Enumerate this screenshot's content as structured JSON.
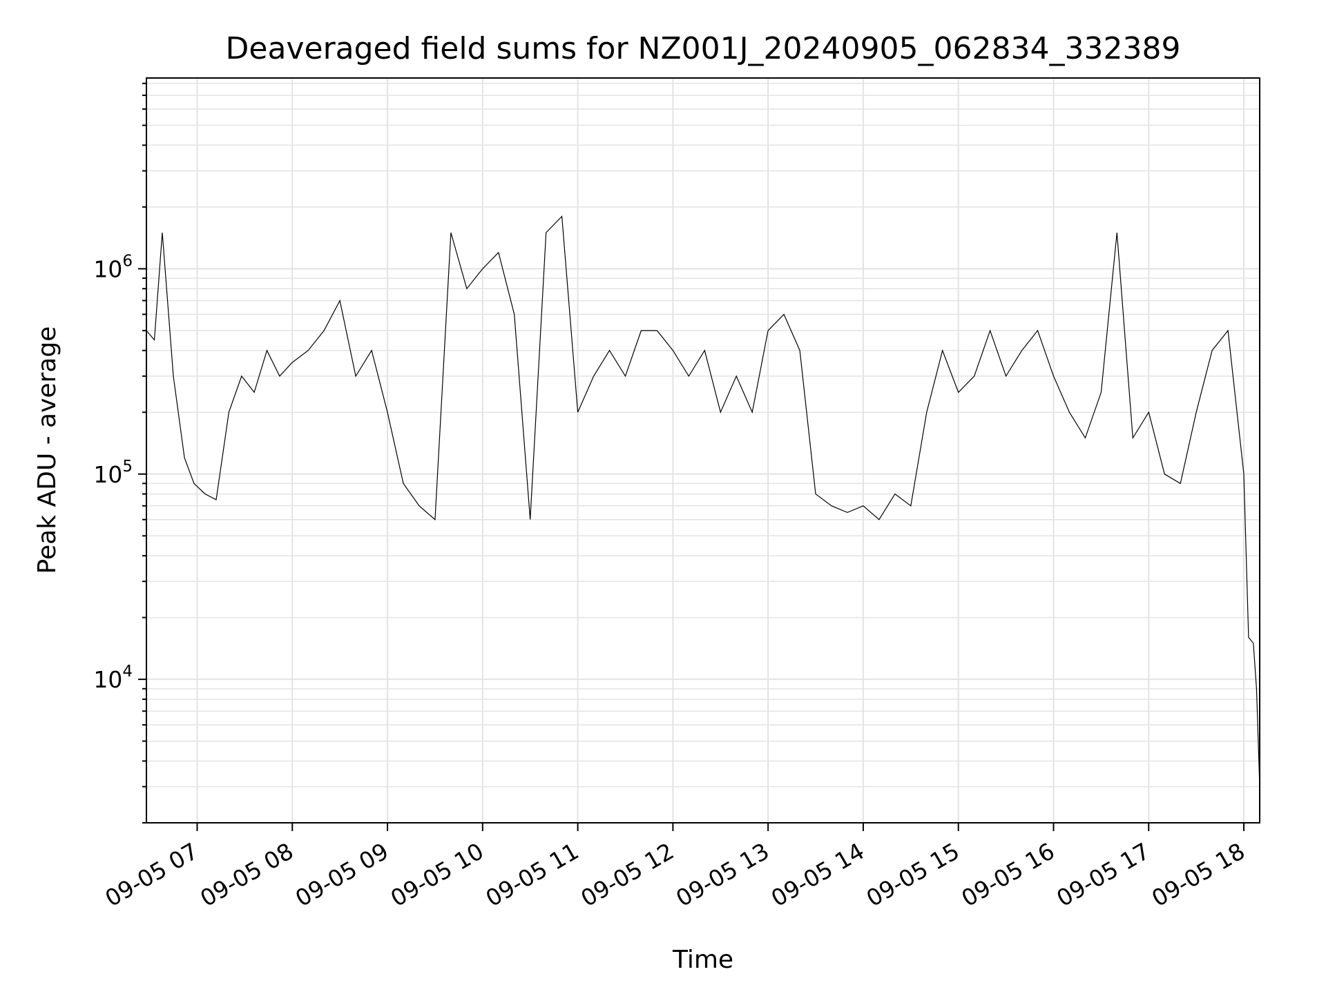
{
  "chart_data": {
    "type": "line",
    "title": "Deaveraged field sums for NZ001J_20240905_062834_332389",
    "xlabel": "Time",
    "ylabel": "Peak ADU - average",
    "yscale": "log",
    "ylim": [
      2000,
      8500000
    ],
    "xlim": [
      "2024-09-05 06:28",
      "2024-09-05 18:10"
    ],
    "grid": "both",
    "xticks": [
      "09-05 07",
      "09-05 08",
      "09-05 09",
      "09-05 10",
      "09-05 11",
      "09-05 12",
      "09-05 13",
      "09-05 14",
      "09-05 15",
      "09-05 16",
      "09-05 17",
      "09-05 18"
    ],
    "xtick_times": [
      "07:00",
      "08:00",
      "09:00",
      "10:00",
      "11:00",
      "12:00",
      "13:00",
      "14:00",
      "15:00",
      "16:00",
      "17:00",
      "18:00"
    ],
    "yticks": [
      {
        "value": 10000,
        "base": "10",
        "exp": "4"
      },
      {
        "value": 100000,
        "base": "10",
        "exp": "5"
      },
      {
        "value": 1000000,
        "base": "10",
        "exp": "6"
      }
    ],
    "series": [
      {
        "color": "#000000",
        "x": [
          "06:28",
          "06:33",
          "06:38",
          "06:45",
          "06:52",
          "06:58",
          "07:05",
          "07:12",
          "07:20",
          "07:28",
          "07:36",
          "07:44",
          "07:52",
          "08:00",
          "08:10",
          "08:20",
          "08:30",
          "08:40",
          "08:50",
          "09:00",
          "09:10",
          "09:20",
          "09:30",
          "09:40",
          "09:50",
          "10:00",
          "10:10",
          "10:20",
          "10:30",
          "10:40",
          "10:50",
          "11:00",
          "11:10",
          "11:20",
          "11:30",
          "11:40",
          "11:50",
          "12:00",
          "12:10",
          "12:20",
          "12:30",
          "12:40",
          "12:50",
          "13:00",
          "13:10",
          "13:20",
          "13:30",
          "13:40",
          "13:50",
          "14:00",
          "14:10",
          "14:20",
          "14:30",
          "14:40",
          "14:50",
          "15:00",
          "15:10",
          "15:20",
          "15:30",
          "15:40",
          "15:50",
          "16:00",
          "16:10",
          "16:20",
          "16:30",
          "16:40",
          "16:50",
          "17:00",
          "17:10",
          "17:20",
          "17:30",
          "17:40",
          "17:50",
          "18:00",
          "18:03",
          "18:06",
          "18:08",
          "18:10"
        ],
        "y": [
          500000,
          450000,
          1500000,
          300000,
          120000,
          90000,
          80000,
          75000,
          200000,
          300000,
          250000,
          400000,
          300000,
          350000,
          400000,
          500000,
          700000,
          300000,
          400000,
          200000,
          90000,
          70000,
          60000,
          1500000,
          800000,
          1000000,
          1200000,
          600000,
          60000,
          1500000,
          1800000,
          200000,
          300000,
          400000,
          300000,
          500000,
          500000,
          400000,
          300000,
          400000,
          200000,
          300000,
          200000,
          500000,
          600000,
          400000,
          80000,
          70000,
          65000,
          70000,
          60000,
          80000,
          70000,
          200000,
          400000,
          250000,
          300000,
          500000,
          300000,
          400000,
          500000,
          300000,
          200000,
          150000,
          250000,
          1500000,
          150000,
          200000,
          100000,
          90000,
          200000,
          400000,
          500000,
          100000,
          16000,
          15000,
          9000,
          3000
        ]
      }
    ]
  }
}
